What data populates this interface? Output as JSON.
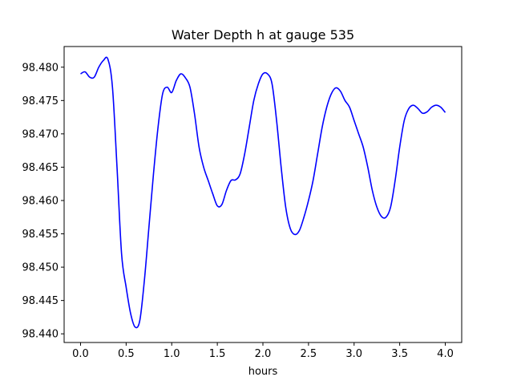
{
  "chart_data": {
    "type": "line",
    "title": "Water Depth h at gauge 535",
    "xlabel": "hours",
    "ylabel": "",
    "xlim": [
      -0.18,
      4.18
    ],
    "ylim": [
      98.4387,
      98.4831
    ],
    "xticks": [
      0.0,
      0.5,
      1.0,
      1.5,
      2.0,
      2.5,
      3.0,
      3.5,
      4.0
    ],
    "xtick_labels": [
      "0.0",
      "0.5",
      "1.0",
      "1.5",
      "2.0",
      "2.5",
      "3.0",
      "3.5",
      "4.0"
    ],
    "yticks": [
      98.44,
      98.445,
      98.45,
      98.455,
      98.46,
      98.465,
      98.47,
      98.475,
      98.48
    ],
    "ytick_labels": [
      "98.440",
      "98.445",
      "98.450",
      "98.455",
      "98.460",
      "98.465",
      "98.470",
      "98.475",
      "98.480"
    ],
    "grid": false,
    "series": [
      {
        "color": "#0000ff",
        "x": [
          0.0,
          0.05,
          0.1,
          0.15,
          0.2,
          0.25,
          0.3,
          0.35,
          0.4,
          0.45,
          0.5,
          0.55,
          0.6,
          0.65,
          0.7,
          0.75,
          0.8,
          0.85,
          0.9,
          0.95,
          1.0,
          1.05,
          1.1,
          1.15,
          1.2,
          1.25,
          1.3,
          1.35,
          1.4,
          1.45,
          1.5,
          1.55,
          1.6,
          1.65,
          1.7,
          1.75,
          1.8,
          1.85,
          1.9,
          1.95,
          2.0,
          2.05,
          2.1,
          2.15,
          2.2,
          2.25,
          2.3,
          2.35,
          2.4,
          2.45,
          2.5,
          2.55,
          2.6,
          2.65,
          2.7,
          2.75,
          2.8,
          2.85,
          2.9,
          2.95,
          3.0,
          3.05,
          3.1,
          3.15,
          3.2,
          3.25,
          3.3,
          3.35,
          3.4,
          3.45,
          3.5,
          3.55,
          3.6,
          3.65,
          3.7,
          3.75,
          3.8,
          3.85,
          3.9,
          3.95,
          4.0
        ],
        "y": [
          98.479,
          98.4793,
          98.4785,
          98.4785,
          98.48,
          98.481,
          98.4812,
          98.477,
          98.465,
          98.452,
          98.447,
          98.443,
          98.441,
          98.442,
          98.448,
          98.456,
          98.464,
          98.471,
          98.476,
          98.477,
          98.4762,
          98.478,
          98.479,
          98.4784,
          98.477,
          98.473,
          98.468,
          98.465,
          98.463,
          98.461,
          98.4592,
          98.4594,
          98.4615,
          98.463,
          98.4631,
          98.464,
          98.467,
          98.471,
          98.475,
          98.4775,
          98.479,
          98.479,
          98.4775,
          98.472,
          98.465,
          98.459,
          98.4558,
          98.4549,
          98.4555,
          98.4575,
          98.46,
          98.463,
          98.467,
          98.471,
          98.474,
          98.476,
          98.4769,
          98.4764,
          98.475,
          98.474,
          98.472,
          98.47,
          98.468,
          98.465,
          98.4615,
          98.459,
          98.4576,
          98.4575,
          98.459,
          98.463,
          98.468,
          98.472,
          98.4738,
          98.4743,
          98.4738,
          98.4731,
          98.4733,
          98.474,
          98.4743,
          98.474,
          98.4732
        ]
      }
    ]
  }
}
